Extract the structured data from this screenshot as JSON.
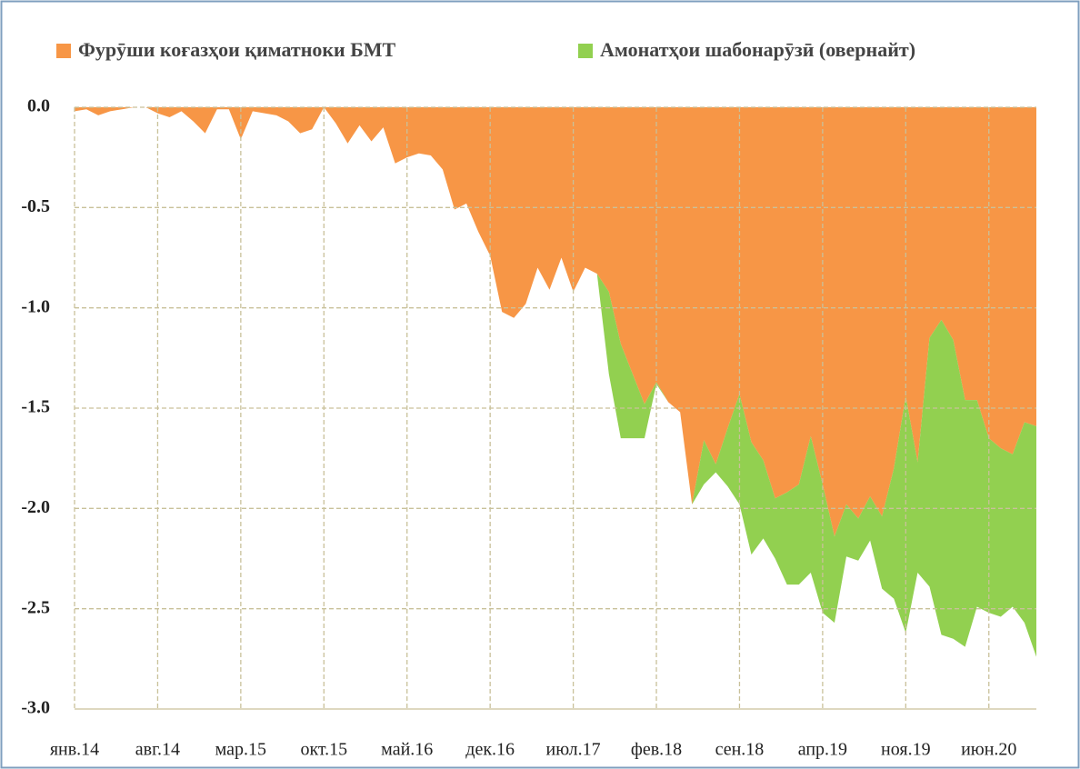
{
  "chart_data": {
    "type": "stacked_area",
    "categories": [
      "янв.14",
      null,
      null,
      null,
      null,
      null,
      null,
      "авг.14",
      null,
      null,
      null,
      null,
      null,
      null,
      "мар.15",
      null,
      null,
      null,
      null,
      null,
      null,
      "окт.15",
      null,
      null,
      null,
      null,
      null,
      null,
      "май.16",
      null,
      null,
      null,
      null,
      null,
      null,
      "дек.16",
      null,
      null,
      null,
      null,
      null,
      null,
      "июл.17",
      null,
      null,
      null,
      null,
      null,
      null,
      "фев.18",
      null,
      null,
      null,
      null,
      null,
      null,
      "сен.18",
      null,
      null,
      null,
      null,
      null,
      null,
      "апр.19",
      null,
      null,
      null,
      null,
      null,
      null,
      "ноя.19",
      null,
      null,
      null,
      null,
      null,
      null,
      "июн.20",
      null,
      null,
      null,
      null
    ],
    "series": [
      {
        "name": "Фурӯши коғазҳои қиматноки БМТ",
        "color": "#f79646",
        "values": [
          -0.02,
          -0.01,
          -0.04,
          -0.02,
          -0.01,
          0,
          0,
          -0.03,
          -0.05,
          -0.02,
          -0.07,
          -0.13,
          -0.01,
          -0.01,
          -0.16,
          -0.02,
          -0.03,
          -0.04,
          -0.07,
          -0.13,
          -0.11,
          0,
          -0.08,
          -0.18,
          -0.09,
          -0.17,
          -0.1,
          -0.28,
          -0.25,
          -0.23,
          -0.24,
          -0.31,
          -0.51,
          -0.48,
          -0.62,
          -0.74,
          -1.02,
          -1.05,
          -0.98,
          -0.8,
          -0.91,
          -0.75,
          -0.92,
          -0.8,
          -0.83,
          -0.92,
          -1.18,
          -1.33,
          -1.48,
          -1.37,
          -1.47,
          -1.52,
          -1.98,
          -1.66,
          -1.78,
          -1.6,
          -1.43,
          -1.67,
          -1.76,
          -1.95,
          -1.92,
          -1.88,
          -1.64,
          -1.88,
          -2.14,
          -1.98,
          -2.05,
          -1.94,
          -2.04,
          -1.8,
          -1.44,
          -1.77,
          -1.15,
          -1.06,
          -1.16,
          -1.46,
          -1.46,
          -1.65,
          -1.7,
          -1.73,
          -1.57,
          -1.59
        ]
      },
      {
        "name": "Амонатҳои шабонарӯзӣ (овернайт)",
        "color": "#92d050",
        "values": [
          0,
          0,
          0,
          0,
          0,
          0,
          0,
          0,
          0,
          0,
          0,
          0,
          0,
          0,
          0,
          0,
          0,
          0,
          0,
          0,
          0,
          0,
          0,
          0,
          0,
          0,
          0,
          0,
          0,
          0,
          0,
          0,
          0,
          0,
          0,
          0,
          0,
          0,
          0,
          0,
          0,
          0,
          0,
          0,
          0,
          -0.41,
          -0.47,
          -0.32,
          -0.17,
          -0.01,
          0,
          0,
          0,
          -0.22,
          -0.04,
          -0.29,
          -0.55,
          -0.56,
          -0.39,
          -0.3,
          -0.46,
          -0.5,
          -0.68,
          -0.64,
          -0.43,
          -0.26,
          -0.21,
          -0.22,
          -0.36,
          -0.65,
          -1.18,
          -0.55,
          -1.24,
          -1.57,
          -1.49,
          -1.23,
          -1.03,
          -0.87,
          -0.84,
          -0.76,
          -1.0,
          -1.15
        ]
      }
    ],
    "ylim": [
      -3,
      0
    ],
    "yticks": [
      {
        "value": 0,
        "label": "0.0"
      },
      -0.5,
      {
        "value": -1,
        "label": "-1.0"
      },
      -1.5,
      {
        "value": -2,
        "label": "-2.0"
      },
      -2.5,
      {
        "value": -3,
        "label": "-3.0"
      }
    ],
    "grid": true,
    "legend": "top"
  }
}
